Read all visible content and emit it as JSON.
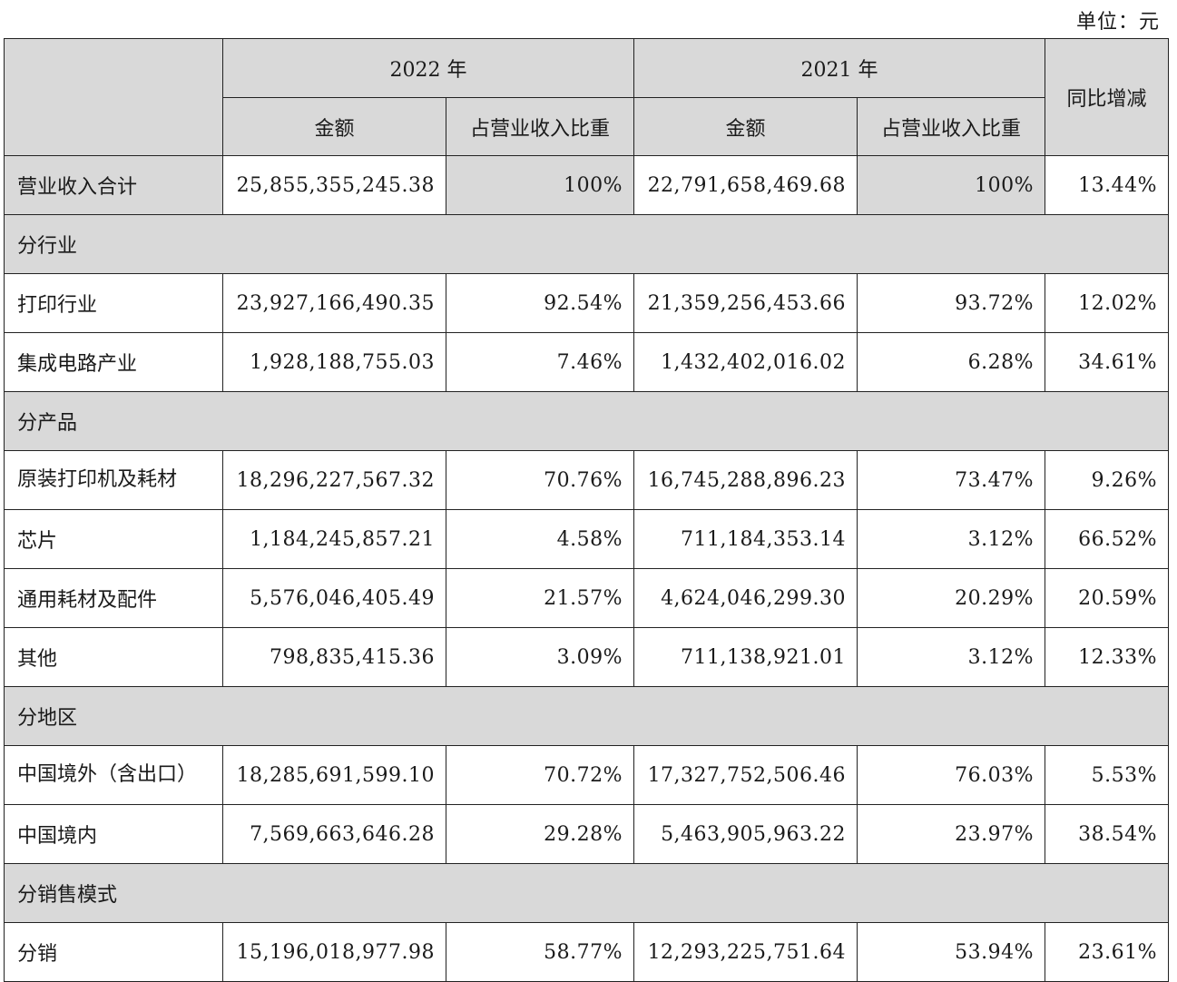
{
  "unit_label": "单位：元",
  "header": {
    "year_2022": "2022 年",
    "year_2021": "2021 年",
    "amount": "金额",
    "ratio": "占营业收入比重",
    "yoy": "同比增减"
  },
  "total": {
    "name": "营业收入合计",
    "a2022": "25,855,355,245.38",
    "r2022": "100%",
    "a2021": "22,791,658,469.68",
    "r2021": "100%",
    "yoy": "13.44%"
  },
  "sections": [
    {
      "title": "分行业",
      "rows": [
        {
          "name": "打印行业",
          "a2022": "23,927,166,490.35",
          "r2022": "92.54%",
          "a2021": "21,359,256,453.66",
          "r2021": "93.72%",
          "yoy": "12.02%"
        },
        {
          "name": "集成电路产业",
          "a2022": "1,928,188,755.03",
          "r2022": "7.46%",
          "a2021": "1,432,402,016.02",
          "r2021": "6.28%",
          "yoy": "34.61%"
        }
      ]
    },
    {
      "title": "分产品",
      "rows": [
        {
          "name": "原装打印机及耗材",
          "a2022": "18,296,227,567.32",
          "r2022": "70.76%",
          "a2021": "16,745,288,896.23",
          "r2021": "73.47%",
          "yoy": "9.26%"
        },
        {
          "name": "芯片",
          "a2022": "1,184,245,857.21",
          "r2022": "4.58%",
          "a2021": "711,184,353.14",
          "r2021": "3.12%",
          "yoy": "66.52%"
        },
        {
          "name": "通用耗材及配件",
          "a2022": "5,576,046,405.49",
          "r2022": "21.57%",
          "a2021": "4,624,046,299.30",
          "r2021": "20.29%",
          "yoy": "20.59%"
        },
        {
          "name": "其他",
          "a2022": "798,835,415.36",
          "r2022": "3.09%",
          "a2021": "711,138,921.01",
          "r2021": "3.12%",
          "yoy": "12.33%"
        }
      ]
    },
    {
      "title": "分地区",
      "rows": [
        {
          "name": "中国境外（含出口）",
          "a2022": "18,285,691,599.10",
          "r2022": "70.72%",
          "a2021": "17,327,752,506.46",
          "r2021": "76.03%",
          "yoy": "5.53%"
        },
        {
          "name": "中国境内",
          "a2022": "7,569,663,646.28",
          "r2022": "29.28%",
          "a2021": "5,463,905,963.22",
          "r2021": "23.97%",
          "yoy": "38.54%"
        }
      ]
    },
    {
      "title": "分销售模式",
      "rows": [
        {
          "name": "分销",
          "a2022": "15,196,018,977.98",
          "r2022": "58.77%",
          "a2021": "12,293,225,751.64",
          "r2021": "53.94%",
          "yoy": "23.61%"
        }
      ]
    }
  ]
}
